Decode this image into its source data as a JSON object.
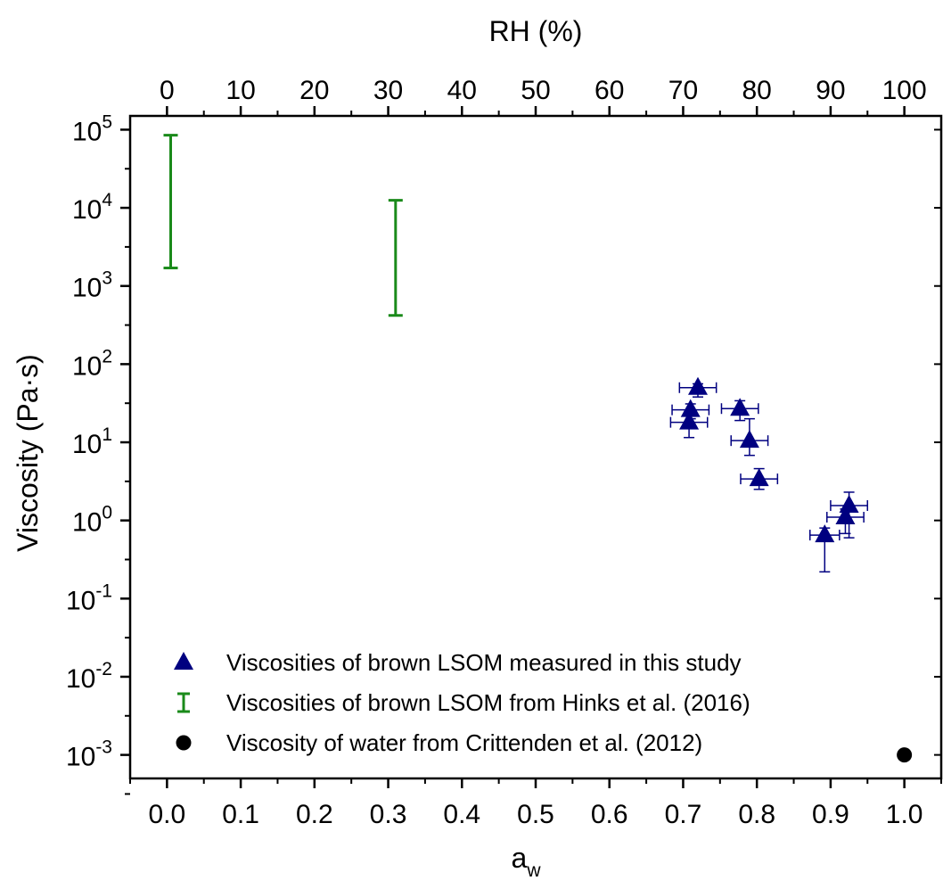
{
  "chart_data": {
    "type": "scatter",
    "title": "",
    "xlabel": "a",
    "xlabel_sub": "w",
    "ylabel": "Viscosity (Pa·s)",
    "x2label": "RH (%)",
    "xlim": [
      -0.05,
      1.05
    ],
    "ylim": [
      0.0005,
      150000
    ],
    "yscale": "log",
    "xticks": [
      0.0,
      0.1,
      0.2,
      0.3,
      0.4,
      0.5,
      0.6,
      0.7,
      0.8,
      0.9,
      1.0
    ],
    "xtick_labels": [
      "0.0",
      "0.1",
      "0.2",
      "0.3",
      "0.4",
      "0.5",
      "0.6",
      "0.7",
      "0.8",
      "0.9",
      "1.0"
    ],
    "x2ticks": [
      0,
      10,
      20,
      30,
      40,
      50,
      60,
      70,
      80,
      90,
      100
    ],
    "x2tick_labels": [
      "0",
      "10",
      "20",
      "30",
      "40",
      "50",
      "60",
      "70",
      "80",
      "90",
      "100"
    ],
    "yticks": [
      {
        "value": 0.001,
        "base": "10",
        "exp": "-3"
      },
      {
        "value": 0.01,
        "base": "10",
        "exp": "-2"
      },
      {
        "value": 0.1,
        "base": "10",
        "exp": "-1"
      },
      {
        "value": 1,
        "base": "10",
        "exp": "0"
      },
      {
        "value": 10,
        "base": "10",
        "exp": "1"
      },
      {
        "value": 100,
        "base": "10",
        "exp": "2"
      },
      {
        "value": 1000,
        "base": "10",
        "exp": "3"
      },
      {
        "value": 10000,
        "base": "10",
        "exp": "4"
      },
      {
        "value": 100000,
        "base": "10",
        "exp": "5"
      }
    ],
    "grid": false,
    "legend_position": "bottom-left",
    "colors": {
      "this_study": "#000080",
      "hinks": "#1a8a1a",
      "water": "#000000"
    },
    "series": [
      {
        "name": "Viscosities of brown LSOM measured in this study",
        "marker": "triangle",
        "color": "#000080",
        "points": [
          {
            "x": 0.72,
            "y": 50,
            "xerr": 0.025,
            "ylo": 38,
            "yhi": 56
          },
          {
            "x": 0.71,
            "y": 26,
            "xerr": 0.025,
            "ylo": 20,
            "yhi": 31
          },
          {
            "x": 0.708,
            "y": 18,
            "xerr": 0.025,
            "ylo": 11.5,
            "yhi": 22
          },
          {
            "x": 0.777,
            "y": 27,
            "xerr": 0.025,
            "ylo": 19,
            "yhi": 34
          },
          {
            "x": 0.79,
            "y": 10.5,
            "xerr": 0.025,
            "ylo": 6.8,
            "yhi": 20
          },
          {
            "x": 0.803,
            "y": 3.4,
            "xerr": 0.025,
            "ylo": 2.5,
            "yhi": 4.6
          },
          {
            "x": 0.892,
            "y": 0.65,
            "xerr": 0.02,
            "ylo": 0.22,
            "yhi": 0.8
          },
          {
            "x": 0.92,
            "y": 1.1,
            "xerr": 0.025,
            "ylo": 0.68,
            "yhi": 1.4
          },
          {
            "x": 0.925,
            "y": 1.55,
            "xerr": 0.025,
            "ylo": 0.6,
            "yhi": 2.3
          }
        ]
      },
      {
        "name": "Viscosities of brown LSOM from Hinks et al. (2016)",
        "marker": "range-bar",
        "color": "#1a8a1a",
        "ranges": [
          {
            "x": 0.005,
            "ylo": 1700,
            "yhi": 85000
          },
          {
            "x": 0.31,
            "ylo": 420,
            "yhi": 12500
          }
        ]
      },
      {
        "name": "Viscosity of water from Crittenden et al. (2012)",
        "marker": "circle",
        "color": "#000000",
        "points": [
          {
            "x": 1.0,
            "y": 0.001
          }
        ]
      }
    ]
  }
}
